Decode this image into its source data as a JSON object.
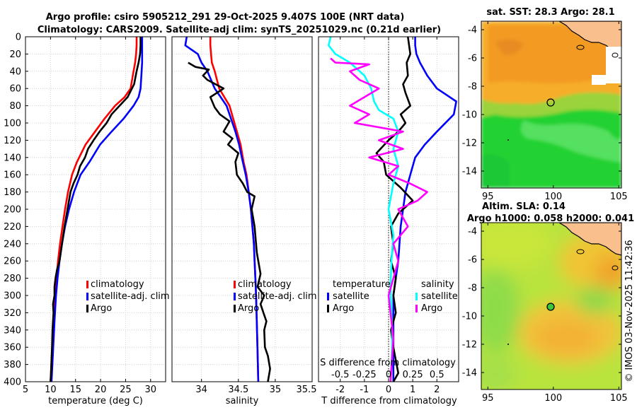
{
  "figure": {
    "title_line1": "Argo profile: csiro 5905212_291 29-Oct-2025 9.407S 100E (NRT data)",
    "title_line2": "Climatology: CARS2009. Satellite-adj clim: synTS_20251029.nc (0.21d earlier)",
    "timestamp": "© IMOS 03-Nov-2025 11:42:36"
  },
  "colors": {
    "climatology": "#ff0000",
    "satellite": "#0000ff",
    "argo": "#000000",
    "s_satellite": "#00ffff",
    "s_argo": "#ff00ff",
    "land": "#f9c08e"
  },
  "chart_data": [
    {
      "type": "line",
      "name": "temperature-profile",
      "xlabel": "temperature (deg C)",
      "ylabel": "",
      "xlim": [
        5,
        33
      ],
      "ylim": [
        400,
        0
      ],
      "xticks": [
        5,
        10,
        15,
        20,
        25,
        30
      ],
      "yticks": [
        0,
        20,
        40,
        60,
        80,
        100,
        120,
        140,
        160,
        180,
        200,
        220,
        240,
        260,
        280,
        300,
        320,
        340,
        360,
        380,
        400
      ],
      "legend": [
        "climatology",
        "satellite-adj. clim",
        "Argo"
      ],
      "series": [
        {
          "name": "climatology",
          "x": [
            27.2,
            27.2,
            27.1,
            26.9,
            26.6,
            26.0,
            24.8,
            22.9,
            20.8,
            18.9,
            17.0,
            15.3,
            14.3,
            13.5,
            12.9,
            12.4,
            11.9,
            11.5,
            11.2,
            10.9,
            10.6,
            10.3,
            10.0
          ],
          "y": [
            0,
            10,
            20,
            30,
            40,
            60,
            70,
            80,
            95,
            110,
            125,
            145,
            160,
            180,
            200,
            220,
            240,
            260,
            280,
            300,
            330,
            365,
            400
          ]
        },
        {
          "name": "satellite-adj. clim",
          "x": [
            28.3,
            28.3,
            28.3,
            28.3,
            28.2,
            28.0,
            27.6,
            26.6,
            24.6,
            22.2,
            19.9,
            17.8,
            16.0,
            14.7,
            13.7,
            12.9,
            12.3,
            11.8,
            11.4,
            11.1,
            10.8,
            10.5,
            10.2
          ],
          "y": [
            0,
            10,
            20,
            30,
            40,
            60,
            70,
            80,
            95,
            110,
            125,
            145,
            160,
            180,
            200,
            220,
            240,
            260,
            280,
            300,
            330,
            365,
            400
          ]
        },
        {
          "name": "Argo",
          "x": [
            28.0,
            28.0,
            27.9,
            27.6,
            27.2,
            26.7,
            25.4,
            23.8,
            22.2,
            21.2,
            19.8,
            18.6,
            17.5,
            16.9,
            15.9,
            15.4,
            14.6,
            14.0,
            13.4,
            12.8,
            12.3,
            11.8,
            11.3,
            11.0,
            10.8,
            10.8,
            10.5,
            10.6,
            10.4,
            10.3,
            10.2,
            10.1,
            10.0
          ],
          "y": [
            0,
            10,
            20,
            30,
            40,
            55,
            70,
            80,
            90,
            100,
            110,
            120,
            130,
            140,
            150,
            160,
            170,
            180,
            200,
            220,
            240,
            260,
            270,
            280,
            290,
            300,
            310,
            320,
            340,
            360,
            375,
            390,
            400
          ]
        }
      ]
    },
    {
      "type": "line",
      "name": "salinity-profile",
      "xlabel": "salinity",
      "xlim": [
        33.6,
        35.5
      ],
      "ylim": [
        400,
        0
      ],
      "xticks": [
        34,
        34.5,
        35
      ],
      "xticklabels": [
        "34",
        "34.5",
        "35"
      ],
      "extra_tick_label": "35.5",
      "legend": [
        "climatology",
        "satellite-adj. clim",
        "Argo"
      ],
      "series": [
        {
          "name": "climatology",
          "x": [
            34.12,
            34.12,
            34.13,
            34.14,
            34.18,
            34.24,
            34.31,
            34.38,
            34.43,
            34.48,
            34.53,
            34.57,
            34.61,
            34.64,
            34.67,
            34.69,
            34.71,
            34.72,
            34.73,
            34.74,
            34.75,
            34.76,
            34.77
          ],
          "y": [
            0,
            10,
            20,
            30,
            40,
            60,
            70,
            80,
            95,
            110,
            125,
            145,
            160,
            180,
            200,
            220,
            240,
            260,
            280,
            300,
            330,
            365,
            400
          ]
        },
        {
          "name": "satellite-adj. clim",
          "x": [
            33.8,
            33.78,
            33.95,
            34.0,
            34.08,
            34.18,
            34.26,
            34.34,
            34.4,
            34.46,
            34.51,
            34.56,
            34.6,
            34.64,
            34.67,
            34.69,
            34.71,
            34.72,
            34.73,
            34.74,
            34.75,
            34.76,
            34.77
          ],
          "y": [
            0,
            10,
            20,
            30,
            40,
            60,
            70,
            80,
            95,
            110,
            125,
            145,
            160,
            180,
            200,
            220,
            240,
            260,
            280,
            300,
            330,
            365,
            400
          ]
        },
        {
          "name": "Argo",
          "x": [
            33.82,
            33.92,
            34.1,
            34.02,
            34.08,
            34.3,
            34.12,
            34.18,
            34.25,
            34.38,
            34.3,
            34.42,
            34.36,
            34.5,
            34.46,
            34.48,
            34.56,
            34.62,
            34.72,
            34.68,
            34.72,
            34.75,
            34.8,
            34.76,
            34.85,
            34.8,
            34.84,
            34.88,
            34.85,
            34.86,
            34.9,
            34.93,
            34.9
          ],
          "y": [
            30,
            35,
            38,
            45,
            50,
            60,
            70,
            82,
            90,
            98,
            110,
            118,
            125,
            135,
            145,
            160,
            170,
            180,
            185,
            200,
            220,
            250,
            275,
            290,
            300,
            310,
            320,
            330,
            340,
            360,
            370,
            385,
            400
          ]
        }
      ]
    },
    {
      "type": "line",
      "name": "difference-profile",
      "xlabel": "T difference from climatology",
      "x2label": "S difference from climatology",
      "xlim": [
        -2.9,
        2.9
      ],
      "ylim": [
        400,
        0
      ],
      "xticks": [
        -2,
        -1,
        0,
        1,
        2
      ],
      "xticklabels": [
        "-2",
        "-1",
        "0",
        "1",
        "2"
      ],
      "x2ticks": [
        -0.5,
        -0.25,
        0,
        0.25,
        0.5
      ],
      "x2ticklabels": [
        "-0.5",
        "-0.25",
        "0",
        "0.25",
        "0.5"
      ],
      "legend_temperature_title": "temperature",
      "legend_salinity_title": "salinity",
      "legend_temperature": [
        "satellite",
        "Argo"
      ],
      "legend_salinity": [
        "satellite",
        "Argo"
      ],
      "series": [
        {
          "name": "T satellite",
          "x": [
            1.1,
            1.1,
            1.15,
            1.3,
            1.6,
            2.0,
            2.8,
            2.7,
            2.0,
            1.5,
            1.1,
            0.9,
            0.7,
            0.6,
            0.5,
            0.45,
            0.4,
            0.3,
            0.2,
            0.2,
            0.2,
            0.2,
            0.2
          ],
          "y": [
            0,
            10,
            20,
            30,
            45,
            60,
            75,
            90,
            110,
            125,
            140,
            160,
            180,
            200,
            220,
            240,
            260,
            280,
            300,
            320,
            340,
            370,
            400
          ]
        },
        {
          "name": "T Argo",
          "x": [
            0.8,
            0.9,
            0.75,
            0.8,
            0.6,
            0.7,
            0.9,
            0.5,
            0.7,
            0.4,
            0.0,
            -0.5,
            -0.2,
            -0.1,
            0.5,
            1.0,
            0.4,
            0.1,
            0.2,
            0.1,
            0.3,
            0.2,
            0.3,
            0.1,
            0.2,
            0.3,
            0.4,
            0.2
          ],
          "y": [
            0,
            20,
            30,
            45,
            55,
            65,
            80,
            90,
            100,
            110,
            120,
            135,
            145,
            160,
            175,
            190,
            205,
            220,
            240,
            260,
            280,
            300,
            320,
            340,
            360,
            375,
            390,
            400
          ]
        },
        {
          "name": "S satellite",
          "x": [
            -0.6,
            -0.62,
            -0.55,
            -0.4,
            -0.25,
            -0.18,
            -0.15,
            -0.1,
            0.05,
            0.1,
            0.05,
            0.1,
            0.05,
            0.0,
            0.05,
            0.03,
            0.02,
            0.03,
            0.04,
            0.03,
            0.02
          ],
          "y": [
            0,
            10,
            20,
            30,
            45,
            60,
            75,
            85,
            95,
            110,
            130,
            150,
            170,
            200,
            230,
            260,
            290,
            320,
            350,
            380,
            400
          ]
        },
        {
          "name": "S Argo",
          "x": [
            -0.6,
            -0.55,
            -0.2,
            -0.4,
            -0.3,
            -0.1,
            -0.25,
            -0.4,
            -0.2,
            -0.35,
            0.15,
            -0.1,
            0.15,
            -0.2,
            0.1,
            0.0,
            0.22,
            0.4,
            0.3,
            0.1,
            0.2,
            0.05,
            0.1,
            0.0,
            0.05,
            0.02
          ],
          "y": [
            25,
            30,
            32,
            40,
            50,
            60,
            70,
            80,
            90,
            100,
            110,
            120,
            130,
            140,
            150,
            160,
            170,
            180,
            190,
            200,
            220,
            240,
            260,
            300,
            350,
            400
          ]
        }
      ]
    },
    {
      "type": "heatmap",
      "name": "sst-map",
      "title": "sat. SST: 28.3 Argo: 28.1",
      "xlim": [
        94.5,
        105.2
      ],
      "ylim": [
        -15.2,
        -3.4
      ],
      "xticks": [
        95,
        100,
        105
      ],
      "yticks": [
        -4,
        -6,
        -8,
        -10,
        -12,
        -14
      ],
      "xticklabels": [
        "95",
        "100",
        "105"
      ],
      "yticklabels": [
        "-4",
        "-6",
        "-8",
        "-10",
        "-12",
        "-14"
      ],
      "argo_position": [
        100,
        -9.4
      ]
    },
    {
      "type": "heatmap",
      "name": "sla-map",
      "title": "Altim. SLA: 0.14",
      "subtitle": "Argo h1000: 0.058 h2000: 0.041",
      "xlim": [
        94.5,
        105.2
      ],
      "ylim": [
        -15.2,
        -3.4
      ],
      "xticks": [
        95,
        100,
        105
      ],
      "yticks": [
        -4,
        -6,
        -8,
        -10,
        -12,
        -14
      ],
      "xticklabels": [
        "95",
        "100",
        "105"
      ],
      "yticklabels": [
        "-4",
        "-6",
        "-8",
        "-10",
        "-12",
        "-14"
      ],
      "argo_position": [
        100,
        -9.4
      ]
    }
  ]
}
